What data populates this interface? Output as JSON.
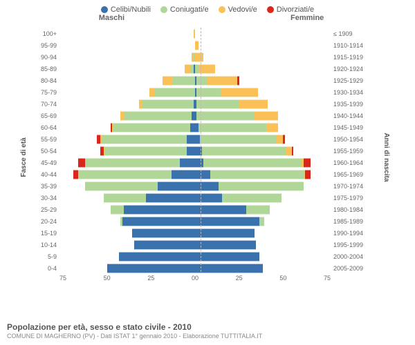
{
  "legend": [
    {
      "label": "Celibi/Nubili",
      "color": "#3972ac"
    },
    {
      "label": "Coniugati/e",
      "color": "#b0d698"
    },
    {
      "label": "Vedovi/e",
      "color": "#f9c157"
    },
    {
      "label": "Divorziati/e",
      "color": "#d9281b"
    }
  ],
  "headers": {
    "male": "Maschi",
    "female": "Femmine"
  },
  "ylabel_left": "Fasce di età",
  "ylabel_right": "Anni di nascita",
  "title": "Popolazione per età, sesso e stato civile - 2010",
  "subtitle": "COMUNE DI MAGHERNO (PV) - Dati ISTAT 1° gennaio 2010 - Elaborazione TUTTITALIA.IT",
  "x_max": 80,
  "x_ticks_left": [
    "75",
    "50",
    "25",
    "0"
  ],
  "x_ticks_right": [
    "0",
    "25",
    "50",
    "75"
  ],
  "colors": {
    "celibi": "#3972ac",
    "coniugati": "#b0d698",
    "vedovi": "#f9c157",
    "divorziati": "#d9281b",
    "grid": "#e0e0e0",
    "bg": "#ffffff"
  },
  "age_bands": [
    {
      "age": "100+",
      "birth": "≤ 1909",
      "m": [
        0,
        0,
        1,
        0
      ],
      "f": [
        0,
        0,
        0,
        0
      ]
    },
    {
      "age": "95-99",
      "birth": "1910-1914",
      "m": [
        0,
        0,
        0,
        0
      ],
      "f": [
        0,
        0,
        2,
        0
      ]
    },
    {
      "age": "90-94",
      "birth": "1915-1919",
      "m": [
        0,
        1,
        1,
        0
      ],
      "f": [
        0,
        0,
        5,
        0
      ]
    },
    {
      "age": "85-89",
      "birth": "1920-1924",
      "m": [
        1,
        2,
        3,
        0
      ],
      "f": [
        0,
        2,
        10,
        0
      ]
    },
    {
      "age": "80-84",
      "birth": "1925-1929",
      "m": [
        0,
        13,
        6,
        0
      ],
      "f": [
        1,
        6,
        18,
        1
      ]
    },
    {
      "age": "75-79",
      "birth": "1930-1934",
      "m": [
        0,
        24,
        3,
        0
      ],
      "f": [
        1,
        14,
        22,
        0
      ]
    },
    {
      "age": "70-74",
      "birth": "1935-1939",
      "m": [
        1,
        30,
        2,
        0
      ],
      "f": [
        1,
        25,
        17,
        0
      ]
    },
    {
      "age": "65-69",
      "birth": "1940-1944",
      "m": [
        2,
        40,
        2,
        0
      ],
      "f": [
        1,
        34,
        14,
        0
      ]
    },
    {
      "age": "60-64",
      "birth": "1945-1949",
      "m": [
        3,
        45,
        1,
        1
      ],
      "f": [
        2,
        40,
        7,
        0
      ]
    },
    {
      "age": "55-59",
      "birth": "1950-1954",
      "m": [
        5,
        50,
        1,
        2
      ],
      "f": [
        3,
        45,
        4,
        1
      ]
    },
    {
      "age": "50-54",
      "birth": "1955-1959",
      "m": [
        5,
        48,
        1,
        2
      ],
      "f": [
        4,
        50,
        3,
        1
      ]
    },
    {
      "age": "45-49",
      "birth": "1960-1964",
      "m": [
        9,
        56,
        0,
        4
      ],
      "f": [
        5,
        58,
        1,
        4
      ]
    },
    {
      "age": "40-44",
      "birth": "1965-1969",
      "m": [
        14,
        55,
        0,
        3
      ],
      "f": [
        9,
        55,
        1,
        3
      ]
    },
    {
      "age": "35-39",
      "birth": "1970-1974",
      "m": [
        22,
        43,
        0,
        0
      ],
      "f": [
        14,
        50,
        0,
        0
      ]
    },
    {
      "age": "30-34",
      "birth": "1975-1979",
      "m": [
        29,
        25,
        0,
        0
      ],
      "f": [
        16,
        35,
        0,
        0
      ]
    },
    {
      "age": "25-29",
      "birth": "1980-1984",
      "m": [
        42,
        8,
        0,
        0
      ],
      "f": [
        30,
        14,
        0,
        0
      ]
    },
    {
      "age": "20-24",
      "birth": "1985-1989",
      "m": [
        43,
        1,
        0,
        0
      ],
      "f": [
        38,
        3,
        0,
        0
      ]
    },
    {
      "age": "15-19",
      "birth": "1990-1994",
      "m": [
        37,
        0,
        0,
        0
      ],
      "f": [
        35,
        0,
        0,
        0
      ]
    },
    {
      "age": "10-14",
      "birth": "1995-1999",
      "m": [
        36,
        0,
        0,
        0
      ],
      "f": [
        36,
        0,
        0,
        0
      ]
    },
    {
      "age": "5-9",
      "birth": "2000-2004",
      "m": [
        45,
        0,
        0,
        0
      ],
      "f": [
        38,
        0,
        0,
        0
      ]
    },
    {
      "age": "0-4",
      "birth": "2005-2009",
      "m": [
        52,
        0,
        0,
        0
      ],
      "f": [
        40,
        0,
        0,
        0
      ]
    }
  ]
}
